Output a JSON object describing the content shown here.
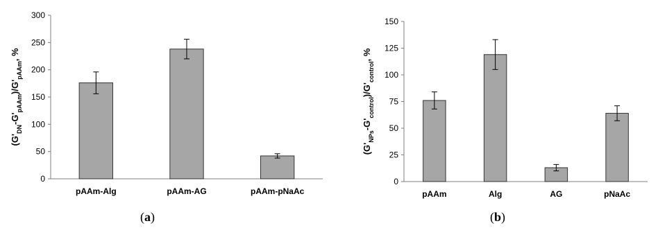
{
  "chart_data": [
    {
      "type": "bar",
      "panel_label_open": "(",
      "panel_label": "a",
      "panel_label_close": ")",
      "ylabel": {
        "parts": [
          {
            "t": "(G'",
            "sub": false
          },
          {
            "t": "DN",
            "sub": true
          },
          {
            "t": "-G'",
            "sub": false
          },
          {
            "t": "pAAm",
            "sub": true
          },
          {
            "t": ")/G'",
            "sub": false
          },
          {
            "t": "pAAm",
            "sub": true
          },
          {
            "t": ", %",
            "sub": false
          }
        ]
      },
      "categories": [
        "pAAm-Alg",
        "pAAm-AG",
        "pAAm-pNaAc"
      ],
      "values": [
        176,
        238,
        42
      ],
      "errors": [
        20,
        18,
        4
      ],
      "ylim": [
        0,
        300
      ],
      "yticks": [
        0,
        50,
        100,
        150,
        200,
        250,
        300
      ],
      "grid": false,
      "bar_color": "#a6a6a6",
      "bar_stroke": "#333333"
    },
    {
      "type": "bar",
      "panel_label_open": "(",
      "panel_label": "b",
      "panel_label_close": ")",
      "ylabel": {
        "parts": [
          {
            "t": "(G'",
            "sub": false
          },
          {
            "t": "NPs",
            "sub": true
          },
          {
            "t": "-G'",
            "sub": false
          },
          {
            "t": "control",
            "sub": true
          },
          {
            "t": ")/G'",
            "sub": false
          },
          {
            "t": "control",
            "sub": true
          },
          {
            "t": ", %",
            "sub": false
          }
        ]
      },
      "categories": [
        "pAAm",
        "Alg",
        "AG",
        "pNaAc"
      ],
      "values": [
        76,
        119,
        13,
        64
      ],
      "errors": [
        8,
        14,
        3,
        7
      ],
      "ylim": [
        0,
        150
      ],
      "yticks": [
        0,
        25,
        50,
        75,
        100,
        125,
        150
      ],
      "grid": false,
      "bar_color": "#a6a6a6",
      "bar_stroke": "#333333"
    }
  ]
}
